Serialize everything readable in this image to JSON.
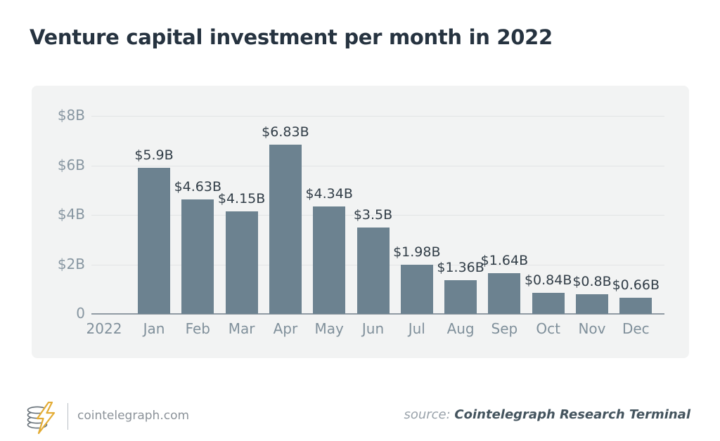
{
  "page": {
    "title": "Venture capital investment per month in 2022"
  },
  "chart_data": {
    "type": "bar",
    "title": "Venture capital investment per month in 2022",
    "year_label": "2022",
    "categories": [
      "Jan",
      "Feb",
      "Mar",
      "Apr",
      "May",
      "Jun",
      "Jul",
      "Aug",
      "Sep",
      "Oct",
      "Nov",
      "Dec"
    ],
    "values": [
      5.9,
      4.63,
      4.15,
      6.83,
      4.34,
      3.5,
      1.98,
      1.36,
      1.64,
      0.84,
      0.8,
      0.66
    ],
    "value_labels": [
      "$5.9B",
      "$4.63B",
      "$4.15B",
      "$6.83B",
      "$4.34B",
      "$3.5B",
      "$1.98B",
      "$1.36B",
      "$1.64B",
      "$0.84B",
      "$0.8B",
      "$0.66B"
    ],
    "y_ticks": [
      {
        "label": "$8B",
        "value": 8
      },
      {
        "label": "$6B",
        "value": 6
      },
      {
        "label": "$4B",
        "value": 4
      },
      {
        "label": "$2B",
        "value": 2
      },
      {
        "label": "0",
        "value": 0
      }
    ],
    "ylim": [
      0,
      8
    ],
    "xlabel": "",
    "ylabel": "",
    "grid": true,
    "legend": "none",
    "unit": "billions USD"
  },
  "footer": {
    "site": "cointelegraph.com",
    "source_label": "source:",
    "source_value": "Cointelegraph Research Terminal"
  },
  "colors": {
    "bar": "#6c8290",
    "panel_background": "#f2f3f3",
    "title_text": "#263340",
    "axis_text": "#8796a1",
    "value_text": "#313d47",
    "gridline": "#e2e4e5",
    "baseline": "#909ba3",
    "logo_accent": "#e3ac35"
  }
}
